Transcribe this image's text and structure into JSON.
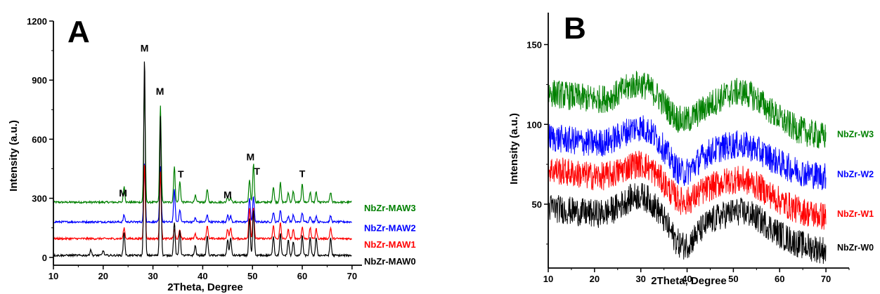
{
  "panels": [
    {
      "letter": "A",
      "xlabel": "2Theta, Degree",
      "ylabel": "Intensity (a.u.)",
      "xlim": [
        10,
        72
      ],
      "ylim": [
        -40,
        1200
      ],
      "xticks": [
        10,
        20,
        30,
        40,
        50,
        60,
        70
      ],
      "yticks": [
        0,
        300,
        600,
        900,
        1200
      ],
      "peak_labels": [
        {
          "text": "M",
          "x": 24.0,
          "y": 310
        },
        {
          "text": "M",
          "x": 28.3,
          "y": 1045
        },
        {
          "text": "M",
          "x": 31.4,
          "y": 825
        },
        {
          "text": "T",
          "x": 35.6,
          "y": 405
        },
        {
          "text": "M",
          "x": 45.0,
          "y": 300
        },
        {
          "text": "M",
          "x": 49.6,
          "y": 492
        },
        {
          "text": "T",
          "x": 50.9,
          "y": 420
        },
        {
          "text": "T",
          "x": 60.0,
          "y": 407
        }
      ]
    },
    {
      "letter": "B",
      "xlabel": "2Theta, Degree",
      "ylabel": "Intensity (a.u.)",
      "xlim": [
        10,
        75
      ],
      "ylim": [
        10,
        170
      ],
      "xticks": [
        10,
        20,
        30,
        40,
        50,
        60,
        70
      ],
      "yticks": [
        50,
        100,
        150
      ],
      "peak_labels": []
    }
  ],
  "chart_data": [
    {
      "type": "line",
      "panel": "A",
      "xlabel": "2Theta, Degree",
      "ylabel": "Intensity (a.u.)",
      "xlim": [
        10,
        72
      ],
      "ylim": [
        -40,
        1200
      ],
      "grid": false,
      "legend": "right-end labels",
      "peaks_x": [
        17.5,
        20.0,
        24.2,
        28.3,
        31.5,
        34.3,
        35.4,
        38.5,
        40.9,
        45.0,
        45.6,
        49.4,
        50.2,
        54.2,
        55.6,
        57.2,
        58.2,
        60.0,
        61.6,
        62.8,
        65.7
      ],
      "series": [
        {
          "name": "NbZr-MAW3",
          "color": "#008000",
          "baseline": 280,
          "peaks_y": [
            0,
            0,
            360,
            890,
            770,
            460,
            385,
            315,
            345,
            310,
            305,
            390,
            475,
            360,
            380,
            330,
            335,
            370,
            330,
            330,
            330
          ]
        },
        {
          "name": "NbZr-MAW2",
          "color": "#0000ff",
          "baseline": 180,
          "peaks_y": [
            0,
            0,
            215,
            480,
            460,
            345,
            245,
            200,
            215,
            215,
            210,
            300,
            310,
            230,
            240,
            210,
            215,
            225,
            210,
            210,
            210
          ]
        },
        {
          "name": "NbZr-MAW1",
          "color": "#ff0000",
          "baseline": 95,
          "peaks_y": [
            0,
            0,
            150,
            480,
            440,
            140,
            140,
            120,
            160,
            145,
            150,
            255,
            255,
            160,
            175,
            140,
            140,
            155,
            150,
            145,
            150
          ]
        },
        {
          "name": "NbZr-MAW0",
          "color": "#000000",
          "baseline": 10,
          "peaks_y": [
            40,
            35,
            130,
            1010,
            720,
            180,
            140,
            60,
            110,
            90,
            100,
            200,
            240,
            110,
            120,
            90,
            80,
            110,
            100,
            100,
            100
          ]
        }
      ]
    },
    {
      "type": "line",
      "panel": "B",
      "xlabel": "2Theta, Degree",
      "ylabel": "Intensity (a.u.)",
      "xlim": [
        10,
        75
      ],
      "ylim": [
        10,
        170
      ],
      "grid": false,
      "legend": "right-end labels",
      "series": [
        {
          "name": "NbZr-W3",
          "color": "#008000",
          "start": 120,
          "hump1": 125,
          "trough": 100,
          "hump2": 120,
          "end": 92
        },
        {
          "name": "NbZr-W2",
          "color": "#0000ff",
          "start": 92,
          "hump1": 98,
          "trough": 68,
          "hump2": 87,
          "end": 67
        },
        {
          "name": "NbZr-W1",
          "color": "#ff0000",
          "start": 72,
          "hump1": 75,
          "trough": 50,
          "hump2": 65,
          "end": 42
        },
        {
          "name": "NbZr-W0",
          "color": "#000000",
          "start": 48,
          "hump1": 55,
          "trough": 22,
          "hump2": 45,
          "end": 21
        }
      ]
    }
  ]
}
